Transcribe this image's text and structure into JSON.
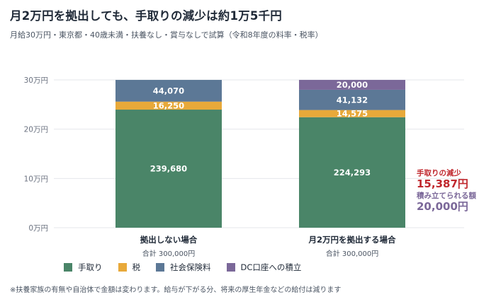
{
  "title": "月2万円を拠出しても、手取りの減少は約1万5千円",
  "subtitle": "月給30万円・東京都・40歳未満・扶養なし・賞与なしで試算（令和8年度の料率・税率）",
  "footnote": "※扶養家族の有無や自治体で金額は変わります。給与が下がる分、将来の厚生年金などの給付は減ります",
  "colors": {
    "take_home": "#4a8568",
    "tax": "#e8a93a",
    "social_insurance": "#5c7896",
    "dc": "#7b6899",
    "reduction_text": "#c0282e",
    "dc_text": "#7b6899",
    "grid": "#e5e7eb"
  },
  "legend": [
    {
      "label": "手取り",
      "color_key": "take_home",
      "icon": "square-swatch"
    },
    {
      "label": "税",
      "color_key": "tax",
      "icon": "square-swatch"
    },
    {
      "label": "社会保険料",
      "color_key": "social_insurance",
      "icon": "square-swatch"
    },
    {
      "label": "DC口座への積立",
      "color_key": "dc",
      "icon": "square-swatch"
    }
  ],
  "annotations": {
    "reduction_label": "手取りの減少",
    "reduction_value": "15,387円",
    "dc_label": "積み立てられる額",
    "dc_value": "20,000円"
  },
  "chart_data": {
    "type": "bar",
    "stacked": true,
    "categories": [
      "拠出しない場合",
      "月2万円を拠出する場合"
    ],
    "totals_text": [
      "合計 300,000円",
      "合計 300,000円"
    ],
    "series": [
      {
        "name": "手取り",
        "color_key": "take_home",
        "values": [
          239680,
          224293
        ],
        "labels": [
          "239,680",
          "224,293"
        ]
      },
      {
        "name": "税",
        "color_key": "tax",
        "values": [
          16250,
          14575
        ],
        "labels": [
          "16,250",
          "14,575"
        ]
      },
      {
        "name": "社会保険料",
        "color_key": "social_insurance",
        "values": [
          44070,
          41132
        ],
        "labels": [
          "44,070",
          "41,132"
        ]
      },
      {
        "name": "DC口座への積立",
        "color_key": "dc",
        "values": [
          0,
          20000
        ],
        "labels": [
          "",
          "20,000"
        ]
      }
    ],
    "yticks": [
      0,
      100000,
      200000,
      300000
    ],
    "ytick_labels": [
      "0万円",
      "10万円",
      "20万円",
      "30万円"
    ],
    "ylim": [
      0,
      300000
    ],
    "grid": true,
    "legend_position": "bottom-left"
  }
}
